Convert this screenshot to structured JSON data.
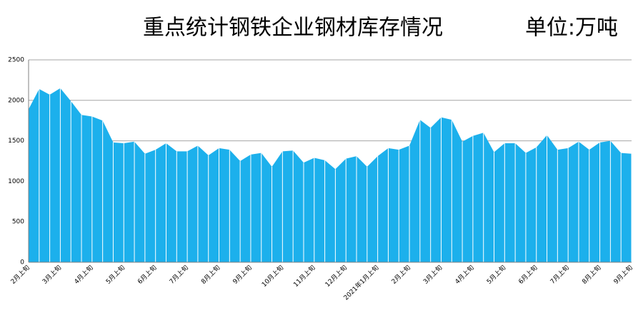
{
  "chart_data": {
    "type": "area",
    "title": "重点统计钢铁企业钢材库存情况",
    "subtitle": "单位:万吨",
    "color": "#1cb0ec",
    "grid": true,
    "categories": [
      "2月上旬",
      null,
      null,
      "3月上旬",
      null,
      null,
      "4月上旬",
      null,
      null,
      "5月上旬",
      null,
      null,
      "6月上旬",
      null,
      null,
      "7月上旬",
      null,
      null,
      "8月上旬",
      null,
      null,
      "9月上旬",
      null,
      null,
      "10月上旬",
      null,
      null,
      "11月上旬",
      null,
      null,
      "12月上旬",
      null,
      null,
      "2021年1月上旬",
      null,
      null,
      "2月上旬",
      null,
      null,
      "3月上旬",
      null,
      null,
      "4月上旬",
      null,
      null,
      "5月上旬",
      null,
      null,
      "6月上旬",
      null,
      null,
      "7月上旬",
      null,
      null,
      "8月上旬",
      null,
      null,
      "9月上旬"
    ],
    "values": [
      1890,
      2140,
      2070,
      2150,
      1990,
      1820,
      1800,
      1750,
      1480,
      1470,
      1490,
      1340,
      1390,
      1470,
      1370,
      1370,
      1440,
      1320,
      1410,
      1390,
      1250,
      1330,
      1350,
      1180,
      1370,
      1380,
      1230,
      1290,
      1260,
      1150,
      1280,
      1310,
      1180,
      1310,
      1410,
      1390,
      1440,
      1760,
      1660,
      1790,
      1760,
      1490,
      1560,
      1600,
      1360,
      1470,
      1470,
      1350,
      1420,
      1570,
      1390,
      1410,
      1490,
      1390,
      1480,
      1500,
      1350,
      1340
    ],
    "ylim": [
      0,
      2500
    ],
    "yticks": [
      0,
      500,
      1000,
      1500,
      2000,
      2500
    ]
  }
}
